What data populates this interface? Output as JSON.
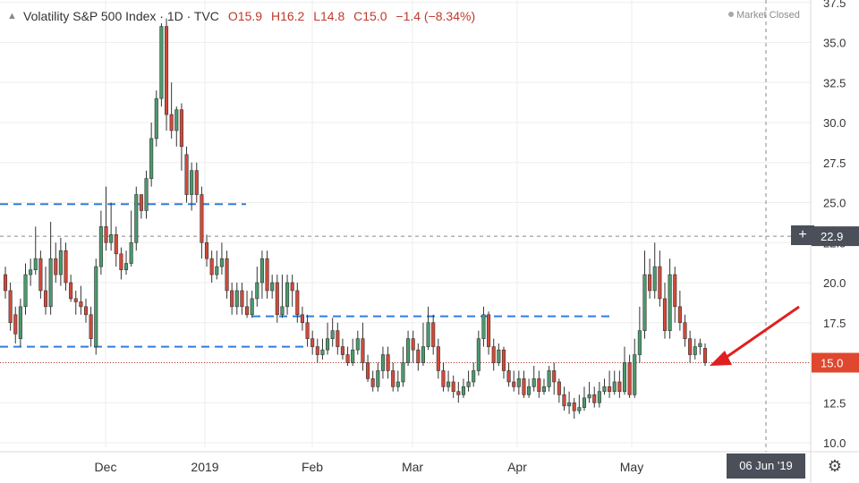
{
  "legend": {
    "collapse_icon": "chevron-up",
    "symbol": "Volatility S&P 500 Index · 1D · TVC",
    "open": "O15.9",
    "high": "H16.2",
    "low": "L14.8",
    "close": "C15.0",
    "change": "−1.4 (−8.34%)"
  },
  "market_status": "Market Closed",
  "crosshair_date": "06 Jun '19",
  "colors": {
    "up": "#4b9a6d",
    "down": "#d24a3a",
    "support": "#2f7de1",
    "price_line": "#c0392b",
    "grid": "#eeeeee",
    "axis_badge": "#4a4f5a"
  },
  "chart_data": {
    "type": "candlestick",
    "title": "Volatility S&P 500 Index · 1D · TVC",
    "y_ticks": [
      10.0,
      12.5,
      15.0,
      17.5,
      20.0,
      22.5,
      25.0,
      27.5,
      30.0,
      32.5,
      35.0,
      37.5
    ],
    "y_range": [
      9.6,
      37.6
    ],
    "x_labels": [
      "Dec",
      "2019",
      "Feb",
      "Mar",
      "Apr",
      "May"
    ],
    "price_label": "15.0",
    "crosshair_label": "22.9",
    "horizontal_levels": [
      {
        "value": 24.9,
        "kind": "dashed-blue",
        "span": "Oct–Jan"
      },
      {
        "value": 17.9,
        "kind": "dashed-blue",
        "span": "Jan–May"
      },
      {
        "value": 16.0,
        "kind": "dashed-blue",
        "span": "Oct–Jan"
      },
      {
        "value": 15.0,
        "kind": "dotted-red-price"
      },
      {
        "value": 22.9,
        "kind": "dashed-gray-crosshair"
      }
    ],
    "annotation": "red arrow pointing to last candle",
    "candles": [
      [
        20.5,
        19.5,
        21.0,
        19.0
      ],
      [
        19.5,
        17.5,
        20.0,
        17.0
      ],
      [
        18.0,
        16.8,
        18.5,
        16.2
      ],
      [
        16.5,
        18.5,
        19.0,
        16.0
      ],
      [
        18.5,
        20.5,
        21.2,
        18.0
      ],
      [
        20.5,
        20.8,
        21.5,
        19.8
      ],
      [
        20.8,
        21.5,
        23.5,
        20.5
      ],
      [
        21.5,
        19.5,
        22.0,
        19.0
      ],
      [
        19.5,
        18.5,
        21.0,
        18.0
      ],
      [
        18.5,
        21.5,
        23.8,
        18.0
      ],
      [
        21.5,
        20.5,
        22.5,
        20.0
      ],
      [
        20.5,
        22.0,
        22.8,
        19.8
      ],
      [
        22.0,
        20.0,
        22.5,
        19.5
      ],
      [
        20.0,
        19.0,
        20.5,
        18.8
      ],
      [
        19.0,
        18.8,
        19.5,
        18.0
      ],
      [
        18.8,
        18.5,
        19.8,
        18.0
      ],
      [
        18.5,
        18.0,
        19.0,
        17.5
      ],
      [
        18.0,
        16.5,
        18.5,
        16.0
      ],
      [
        16.0,
        21.0,
        21.5,
        15.5
      ],
      [
        21.0,
        23.5,
        24.5,
        20.5
      ],
      [
        23.5,
        22.5,
        26.0,
        22.0
      ],
      [
        22.5,
        23.0,
        25.0,
        22.0
      ],
      [
        23.0,
        21.8,
        23.5,
        21.0
      ],
      [
        21.8,
        20.8,
        22.2,
        20.2
      ],
      [
        20.8,
        21.2,
        22.0,
        20.5
      ],
      [
        21.2,
        22.5,
        24.5,
        21.0
      ],
      [
        22.5,
        25.5,
        26.0,
        22.0
      ],
      [
        25.5,
        24.5,
        25.5,
        24.0
      ],
      [
        24.5,
        26.5,
        27.0,
        24.0
      ],
      [
        26.5,
        29.0,
        30.0,
        26.0
      ],
      [
        29.0,
        31.5,
        32.0,
        28.5
      ],
      [
        31.5,
        36.0,
        36.2,
        31.0
      ],
      [
        36.0,
        30.5,
        36.5,
        29.5
      ],
      [
        30.5,
        29.5,
        32.5,
        29.0
      ],
      [
        29.5,
        30.8,
        31.0,
        28.5
      ],
      [
        30.8,
        28.5,
        31.2,
        27.0
      ],
      [
        28.0,
        25.5,
        28.5,
        25.0
      ],
      [
        25.5,
        27.0,
        27.5,
        24.5
      ],
      [
        27.0,
        25.5,
        27.5,
        25.0
      ],
      [
        25.5,
        22.5,
        26.0,
        21.5
      ],
      [
        22.5,
        21.5,
        23.0,
        21.0
      ],
      [
        21.5,
        20.5,
        22.0,
        20.0
      ],
      [
        20.5,
        21.0,
        22.0,
        20.2
      ],
      [
        21.0,
        21.5,
        22.5,
        20.5
      ],
      [
        21.5,
        19.5,
        22.0,
        19.0
      ],
      [
        19.5,
        18.5,
        20.0,
        18.0
      ],
      [
        18.5,
        19.5,
        20.0,
        18.0
      ],
      [
        19.5,
        18.5,
        20.0,
        18.0
      ],
      [
        18.5,
        18.0,
        19.5,
        17.8
      ],
      [
        18.0,
        19.0,
        19.5,
        17.8
      ],
      [
        19.0,
        20.0,
        21.0,
        18.5
      ],
      [
        20.0,
        21.5,
        22.0,
        19.0
      ],
      [
        21.5,
        19.5,
        22.0,
        19.0
      ],
      [
        19.5,
        20.0,
        20.5,
        19.0
      ],
      [
        20.0,
        18.0,
        20.5,
        17.5
      ],
      [
        18.0,
        18.5,
        20.5,
        17.8
      ],
      [
        18.5,
        20.0,
        20.5,
        18.0
      ],
      [
        20.0,
        19.5,
        20.5,
        18.5
      ],
      [
        19.5,
        18.0,
        20.0,
        17.5
      ],
      [
        18.0,
        17.5,
        18.5,
        17.0
      ],
      [
        17.5,
        16.5,
        18.0,
        16.0
      ],
      [
        16.5,
        16.0,
        17.0,
        15.5
      ],
      [
        16.0,
        15.5,
        16.5,
        15.0
      ],
      [
        15.5,
        15.8,
        16.5,
        15.2
      ],
      [
        15.8,
        16.5,
        17.5,
        15.5
      ],
      [
        16.5,
        17.0,
        17.8,
        16.0
      ],
      [
        17.0,
        16.0,
        17.5,
        15.5
      ],
      [
        16.0,
        15.5,
        16.5,
        15.2
      ],
      [
        15.5,
        15.0,
        16.0,
        14.8
      ],
      [
        15.0,
        15.8,
        16.5,
        14.8
      ],
      [
        15.8,
        16.5,
        17.0,
        15.5
      ],
      [
        16.5,
        15.0,
        17.5,
        14.5
      ],
      [
        15.0,
        14.0,
        15.5,
        13.8
      ],
      [
        14.0,
        13.5,
        14.5,
        13.2
      ],
      [
        13.5,
        14.5,
        15.0,
        13.2
      ],
      [
        14.5,
        15.5,
        16.0,
        14.0
      ],
      [
        15.5,
        14.5,
        16.0,
        14.0
      ],
      [
        14.5,
        13.5,
        15.0,
        13.2
      ],
      [
        13.5,
        13.8,
        14.5,
        13.2
      ],
      [
        13.8,
        15.0,
        16.0,
        13.5
      ],
      [
        15.0,
        16.5,
        17.0,
        14.8
      ],
      [
        16.5,
        15.8,
        17.0,
        15.0
      ],
      [
        15.8,
        15.0,
        16.2,
        14.5
      ],
      [
        15.0,
        16.0,
        17.5,
        14.8
      ],
      [
        16.0,
        17.5,
        18.5,
        15.8
      ],
      [
        17.5,
        16.0,
        18.0,
        15.5
      ],
      [
        16.0,
        14.5,
        16.5,
        14.0
      ],
      [
        14.5,
        13.5,
        15.0,
        13.2
      ],
      [
        13.5,
        13.8,
        14.5,
        13.2
      ],
      [
        13.8,
        13.2,
        14.2,
        12.8
      ],
      [
        13.2,
        13.0,
        13.8,
        12.5
      ],
      [
        13.0,
        13.5,
        14.0,
        12.8
      ],
      [
        13.5,
        13.8,
        14.5,
        13.2
      ],
      [
        13.8,
        14.5,
        15.0,
        13.5
      ],
      [
        14.5,
        16.5,
        17.0,
        14.2
      ],
      [
        16.5,
        18.0,
        18.5,
        16.0
      ],
      [
        18.0,
        16.0,
        18.2,
        15.5
      ],
      [
        16.0,
        15.0,
        16.5,
        14.5
      ],
      [
        15.0,
        15.8,
        16.2,
        14.8
      ],
      [
        15.8,
        14.5,
        16.0,
        14.0
      ],
      [
        14.5,
        13.8,
        15.0,
        13.5
      ],
      [
        13.8,
        13.5,
        14.5,
        13.2
      ],
      [
        13.5,
        14.0,
        14.5,
        13.0
      ],
      [
        14.0,
        13.0,
        14.5,
        12.8
      ],
      [
        13.0,
        13.5,
        14.0,
        12.8
      ],
      [
        13.5,
        14.0,
        14.8,
        13.2
      ],
      [
        14.0,
        13.2,
        14.5,
        12.8
      ],
      [
        13.2,
        13.5,
        14.0,
        13.0
      ],
      [
        13.5,
        14.5,
        14.8,
        13.2
      ],
      [
        14.5,
        13.8,
        15.0,
        13.0
      ],
      [
        13.8,
        13.0,
        14.0,
        12.5
      ],
      [
        13.0,
        12.3,
        13.5,
        12.0
      ],
      [
        12.3,
        12.5,
        13.2,
        11.8
      ],
      [
        12.5,
        12.0,
        12.8,
        11.5
      ],
      [
        12.0,
        12.2,
        13.0,
        11.8
      ],
      [
        12.2,
        12.8,
        13.5,
        12.0
      ],
      [
        12.8,
        13.0,
        13.8,
        12.5
      ],
      [
        13.0,
        12.5,
        13.5,
        12.2
      ],
      [
        12.5,
        13.2,
        13.8,
        12.2
      ],
      [
        13.2,
        13.5,
        14.0,
        13.0
      ],
      [
        13.5,
        13.2,
        14.5,
        12.8
      ],
      [
        13.2,
        13.8,
        14.5,
        13.0
      ],
      [
        13.8,
        13.2,
        14.5,
        12.8
      ],
      [
        13.2,
        15.0,
        16.0,
        13.0
      ],
      [
        15.0,
        13.0,
        15.5,
        12.8
      ],
      [
        13.0,
        15.5,
        16.5,
        12.8
      ],
      [
        15.5,
        17.0,
        18.5,
        15.0
      ],
      [
        17.0,
        20.5,
        22.0,
        16.5
      ],
      [
        20.5,
        19.5,
        21.5,
        19.0
      ],
      [
        19.5,
        21.0,
        22.5,
        19.0
      ],
      [
        21.0,
        19.0,
        22.0,
        18.5
      ],
      [
        19.0,
        17.0,
        20.0,
        16.5
      ],
      [
        17.0,
        20.5,
        21.5,
        16.5
      ],
      [
        20.5,
        18.5,
        21.0,
        17.5
      ],
      [
        18.5,
        17.5,
        19.5,
        17.0
      ],
      [
        17.5,
        16.5,
        18.0,
        16.0
      ],
      [
        16.5,
        15.5,
        17.0,
        15.0
      ],
      [
        15.5,
        16.0,
        16.5,
        15.2
      ],
      [
        16.0,
        16.2,
        16.5,
        15.5
      ],
      [
        15.9,
        15.0,
        16.2,
        14.8
      ]
    ]
  }
}
